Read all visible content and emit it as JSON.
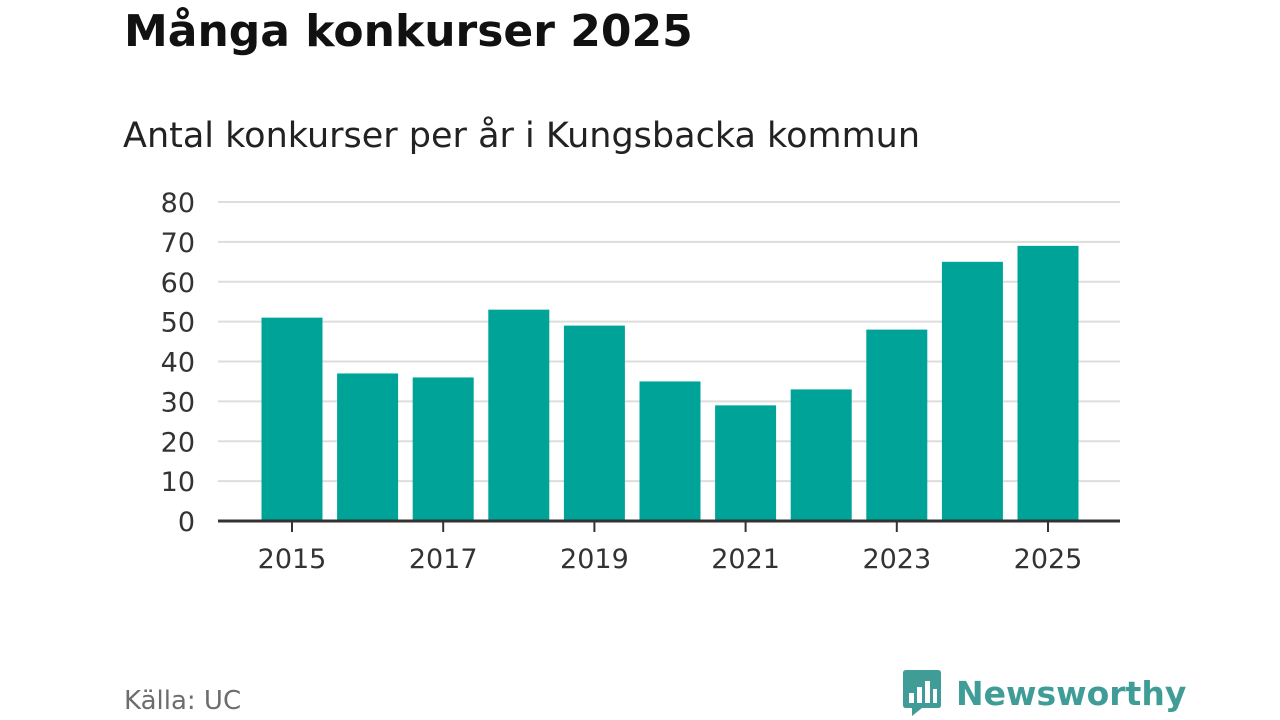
{
  "title": "Många konkurser 2025",
  "subtitle": "Antal konkurser per år i Kungsbacka kommun",
  "source": "Källa: UC",
  "logo": {
    "text": "Newsworthy",
    "icon": "bar-chart-speech-bubble-icon",
    "color": "#3f9c97"
  },
  "chart_data": {
    "type": "bar",
    "categories": [
      "2015",
      "2016",
      "2017",
      "2018",
      "2019",
      "2020",
      "2021",
      "2022",
      "2023",
      "2024",
      "2025"
    ],
    "values": [
      51,
      37,
      36,
      53,
      49,
      35,
      29,
      33,
      48,
      65,
      69
    ],
    "x_tick_labels": [
      "2015",
      "2017",
      "2019",
      "2021",
      "2023",
      "2025"
    ],
    "y_ticks": [
      0,
      10,
      20,
      30,
      40,
      50,
      60,
      70,
      80
    ],
    "ylim": [
      0,
      80
    ],
    "xlabel": "",
    "ylabel": "",
    "grid": true,
    "bar_color": "#00a398",
    "grid_color": "#dddddd",
    "axis_color": "#333333"
  }
}
